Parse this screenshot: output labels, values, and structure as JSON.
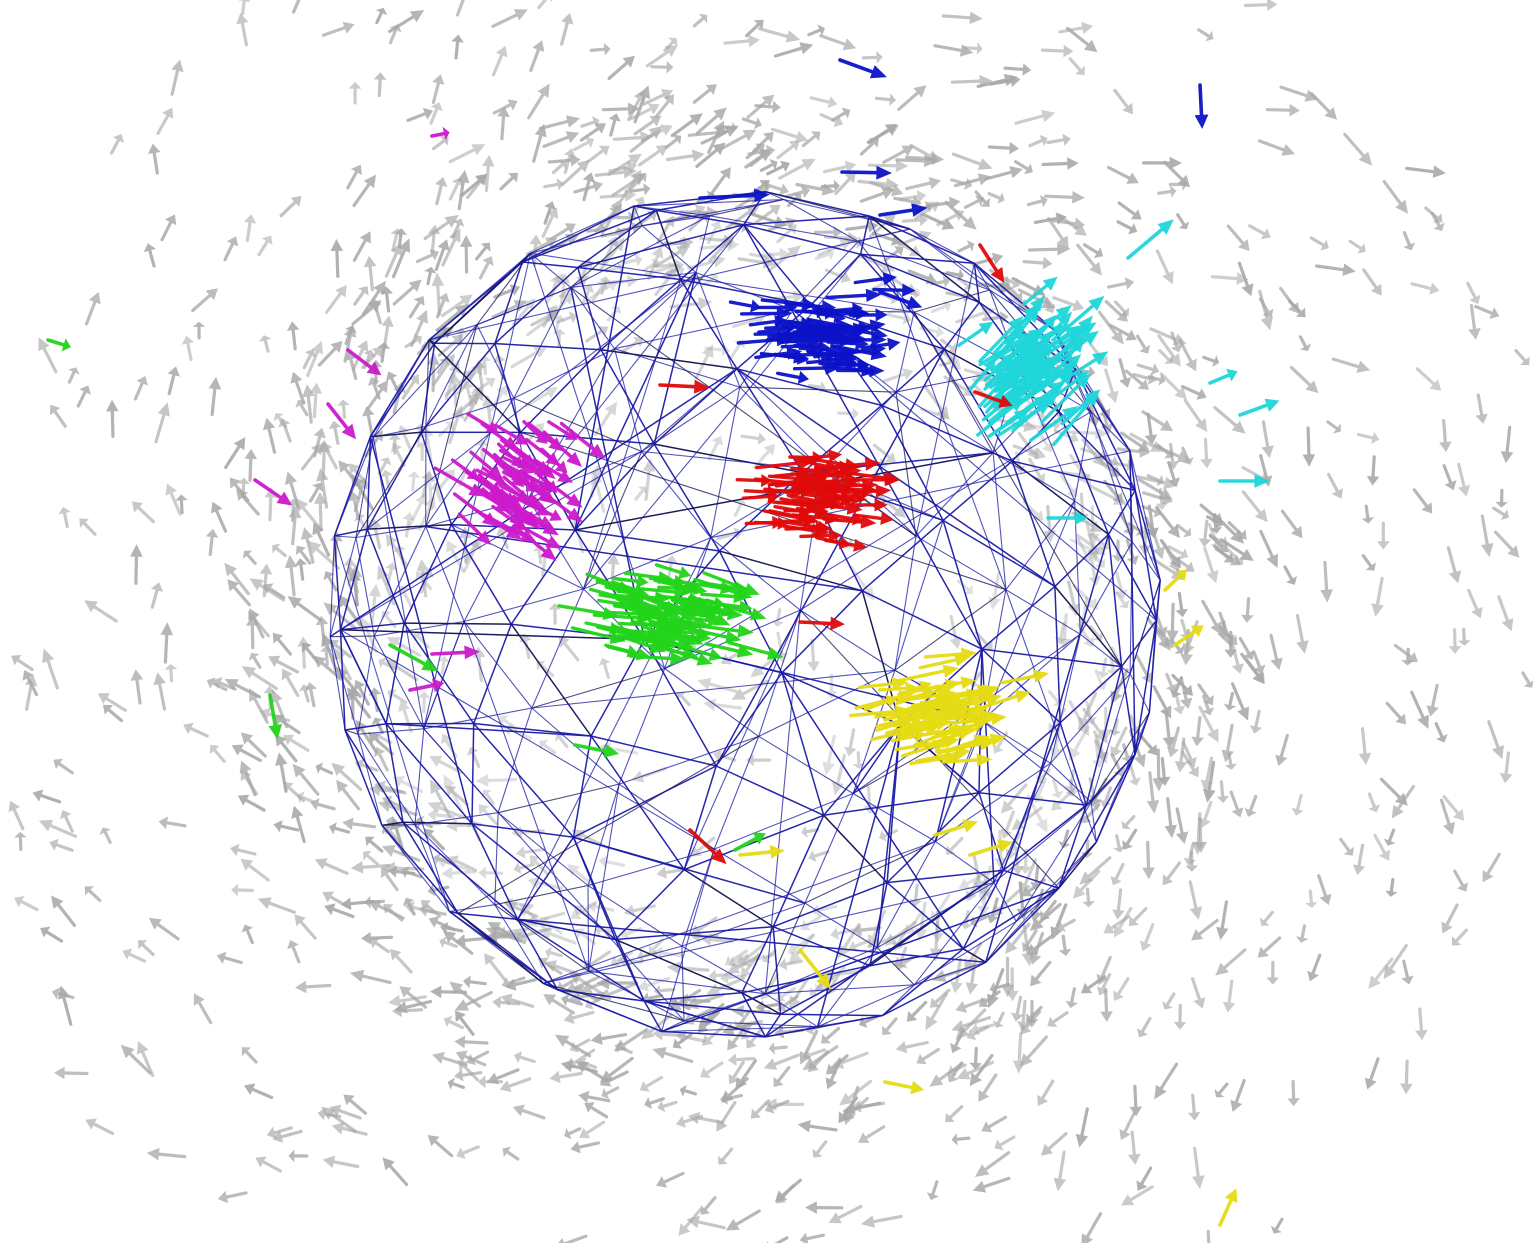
{
  "scene": {
    "background": "#ffffff",
    "mesh_color": "#1a1aa6",
    "mesh_dark_color": "#101050",
    "ambient_arrow_color": "#a8a8a8",
    "clusters": [
      {
        "name": "blue",
        "color": "#0b12c8"
      },
      {
        "name": "cyan",
        "color": "#1fd6da"
      },
      {
        "name": "magenta",
        "color": "#cc1acc"
      },
      {
        "name": "red",
        "color": "#e00a0a"
      },
      {
        "name": "green",
        "color": "#22d41a"
      },
      {
        "name": "yellow",
        "color": "#e6dc14"
      }
    ]
  }
}
